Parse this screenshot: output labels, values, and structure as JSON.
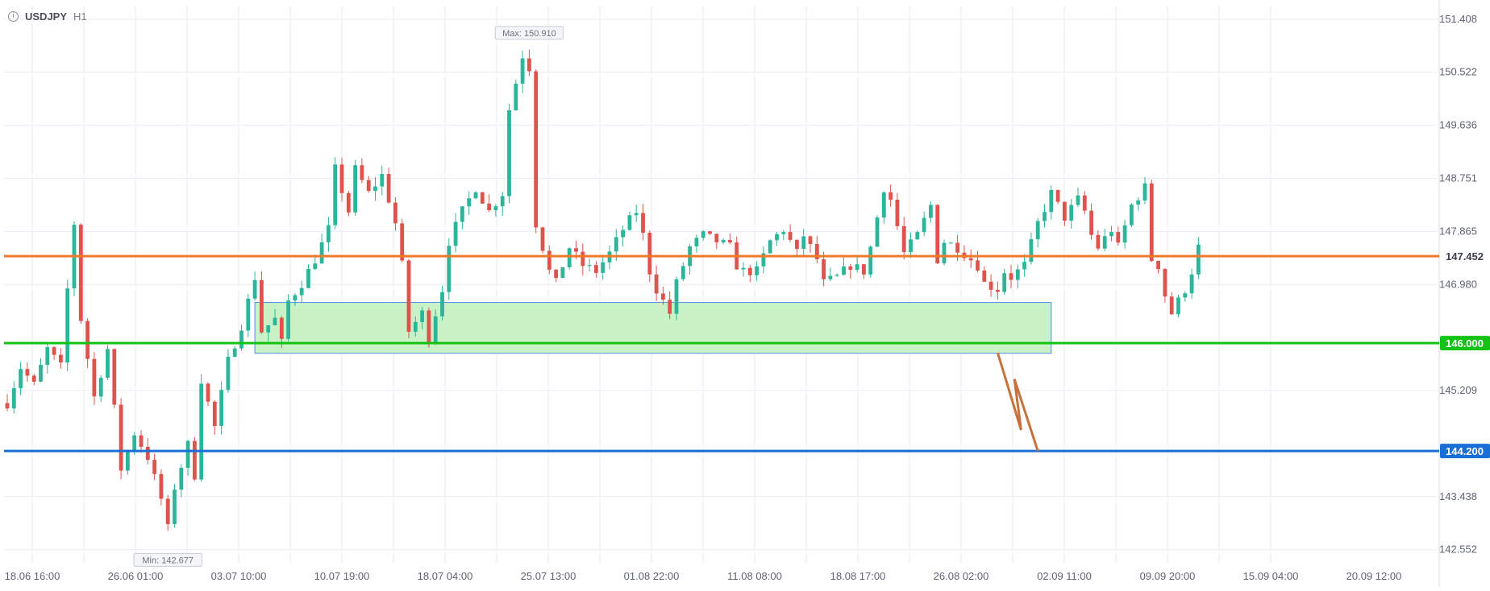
{
  "header": {
    "symbol": "USDJPY",
    "timeframe": "H1"
  },
  "chart_data": {
    "type": "candlestick",
    "symbol": "USDJPY",
    "timeframe": "H1",
    "y_ticks": [
      151.408,
      150.522,
      149.636,
      148.751,
      147.865,
      146.98,
      145.209,
      143.438,
      142.552
    ],
    "y_tick_labels": [
      "151.408",
      "150.522",
      "149.636",
      "148.751",
      "147.865",
      "146.980",
      "145.209",
      "143.438",
      "142.552"
    ],
    "ylim": [
      142.32,
      151.62
    ],
    "x_tick_labels": [
      "18.06 16:00",
      "26.06 01:00",
      "03.07 10:00",
      "10.07 19:00",
      "18.07 04:00",
      "25.07 13:00",
      "01.08 22:00",
      "11.08 08:00",
      "18.08 17:00",
      "26.08 02:00",
      "02.09 11:00",
      "09.09 20:00",
      "15.09 04:00",
      "20.09 12:00"
    ],
    "path": [
      [
        0,
        145.0
      ],
      [
        2,
        145.6
      ],
      [
        4,
        145.3
      ],
      [
        6,
        145.9
      ],
      [
        8,
        145.6
      ],
      [
        9,
        146.9
      ],
      [
        10,
        148.0
      ],
      [
        11,
        146.4
      ],
      [
        13,
        145.1
      ],
      [
        15,
        145.9
      ],
      [
        16,
        144.9
      ],
      [
        17,
        143.9
      ],
      [
        19,
        144.5
      ],
      [
        21,
        144.1
      ],
      [
        23,
        143.4
      ],
      [
        24,
        142.9
      ],
      [
        25,
        143.6
      ],
      [
        27,
        144.3
      ],
      [
        28,
        143.8
      ],
      [
        29,
        145.4
      ],
      [
        31,
        144.6
      ],
      [
        33,
        145.7
      ],
      [
        35,
        146.3
      ],
      [
        37,
        147.1
      ],
      [
        38,
        146.2
      ],
      [
        40,
        146.4
      ],
      [
        41,
        146.0
      ],
      [
        42,
        146.7
      ],
      [
        44,
        147.0
      ],
      [
        46,
        147.4
      ],
      [
        48,
        147.9
      ],
      [
        49,
        148.9
      ],
      [
        51,
        148.2
      ],
      [
        52,
        148.9
      ],
      [
        54,
        148.5
      ],
      [
        56,
        148.8
      ],
      [
        58,
        148.0
      ],
      [
        59,
        147.3
      ],
      [
        60,
        146.2
      ],
      [
        62,
        146.5
      ],
      [
        63,
        146.1
      ],
      [
        65,
        146.9
      ],
      [
        66,
        147.7
      ],
      [
        68,
        148.2
      ],
      [
        70,
        148.6
      ],
      [
        72,
        148.2
      ],
      [
        74,
        148.5
      ],
      [
        75,
        149.9
      ],
      [
        77,
        150.8
      ],
      [
        78,
        150.6
      ],
      [
        79,
        148.0
      ],
      [
        81,
        147.2
      ],
      [
        82,
        147.0
      ],
      [
        84,
        147.6
      ],
      [
        86,
        147.3
      ],
      [
        88,
        147.2
      ],
      [
        90,
        147.5
      ],
      [
        92,
        147.9
      ],
      [
        94,
        148.2
      ],
      [
        95,
        147.8
      ],
      [
        96,
        147.2
      ],
      [
        97,
        146.9
      ],
      [
        99,
        146.5
      ],
      [
        100,
        147.0
      ],
      [
        102,
        147.6
      ],
      [
        104,
        147.8
      ],
      [
        106,
        147.7
      ],
      [
        108,
        147.6
      ],
      [
        109,
        147.3
      ],
      [
        110,
        147.2
      ],
      [
        112,
        147.2
      ],
      [
        114,
        147.7
      ],
      [
        116,
        147.9
      ],
      [
        118,
        147.5
      ],
      [
        119,
        147.8
      ],
      [
        121,
        147.4
      ],
      [
        122,
        147.0
      ],
      [
        124,
        147.1
      ],
      [
        126,
        147.3
      ],
      [
        128,
        147.2
      ],
      [
        129,
        147.6
      ],
      [
        131,
        148.6
      ],
      [
        132,
        148.4
      ],
      [
        134,
        147.5
      ],
      [
        136,
        147.8
      ],
      [
        138,
        148.3
      ],
      [
        139,
        147.4
      ],
      [
        140,
        147.7
      ],
      [
        142,
        147.6
      ],
      [
        143,
        147.5
      ],
      [
        145,
        147.3
      ],
      [
        146,
        147.0
      ],
      [
        148,
        146.9
      ],
      [
        149,
        147.2
      ],
      [
        150,
        147.1
      ],
      [
        152,
        147.3
      ],
      [
        154,
        148.0
      ],
      [
        156,
        148.5
      ],
      [
        158,
        148.1
      ],
      [
        160,
        148.4
      ],
      [
        161,
        148.2
      ],
      [
        162,
        147.8
      ],
      [
        163,
        147.6
      ],
      [
        165,
        147.9
      ],
      [
        166,
        147.6
      ],
      [
        168,
        148.3
      ],
      [
        170,
        148.6
      ],
      [
        171,
        147.4
      ],
      [
        172,
        147.3
      ],
      [
        173,
        146.8
      ],
      [
        174,
        146.5
      ],
      [
        176,
        146.9
      ],
      [
        177,
        147.2
      ],
      [
        178,
        147.6
      ]
    ],
    "levels": [
      {
        "value": 147.452,
        "label": "147.452",
        "color": "#f07a2a"
      },
      {
        "value": 146.0,
        "label": "146.000",
        "color": "#14c214"
      },
      {
        "value": 144.2,
        "label": "144.200",
        "color": "#1a6fd6"
      }
    ],
    "zone": {
      "price_from": 145.83,
      "price_to": 146.68,
      "x_from": 37,
      "x_to": 156,
      "fill": "#c9f3c7",
      "stroke": "#4a8ce6"
    },
    "projection_arrow": {
      "points": [
        [
          148,
          145.84
        ],
        [
          151.5,
          144.55
        ],
        [
          150.5,
          145.4
        ],
        [
          154,
          144.2
        ]
      ],
      "color": "#c8713a"
    },
    "annotations": [
      {
        "label": "Max: 150.910",
        "price": 150.91,
        "x": 78
      },
      {
        "label": "Min: 142.677",
        "price": 142.677,
        "x": 24
      }
    ],
    "last_price": 147.452,
    "grid": true,
    "colors": {
      "up": "#2bb59a",
      "down": "#e0524c",
      "grid": "#e8ecf4",
      "axis_text": "#5d6370"
    }
  }
}
